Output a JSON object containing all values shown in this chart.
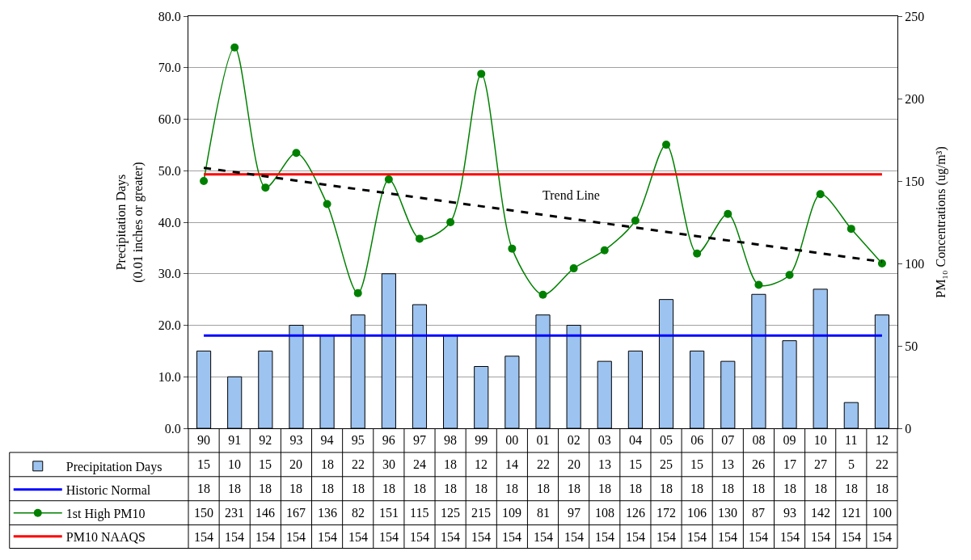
{
  "chart_data": {
    "type": "bar",
    "categories": [
      "90",
      "91",
      "92",
      "93",
      "94",
      "95",
      "96",
      "97",
      "98",
      "99",
      "00",
      "01",
      "02",
      "03",
      "04",
      "05",
      "06",
      "07",
      "08",
      "09",
      "10",
      "11",
      "12"
    ],
    "series": [
      {
        "name": "Precipitation Days",
        "color": "#9dc3f0",
        "values": [
          15,
          10,
          15,
          20,
          18,
          22,
          30,
          24,
          18,
          12,
          14,
          22,
          20,
          13,
          15,
          25,
          15,
          13,
          26,
          17,
          27,
          5,
          22
        ],
        "value_labels": [
          "15",
          "10",
          "15",
          "20",
          "18",
          "22",
          "30",
          "24",
          "18",
          "12",
          "14",
          "22",
          "20",
          "13",
          "15",
          "25",
          "15",
          "13",
          "26",
          "17",
          "27",
          "5",
          "22"
        ]
      },
      {
        "name": "Historic Normal",
        "type": "line",
        "color": "#0000ff",
        "marker": "none",
        "values": [
          18,
          18,
          18,
          18,
          18,
          18,
          18,
          18,
          18,
          18,
          18,
          18,
          18,
          18,
          18,
          18,
          18,
          18,
          18,
          18,
          18,
          18,
          18
        ],
        "value_labels": [
          "18",
          "18",
          "18",
          "18",
          "18",
          "18",
          "18",
          "18",
          "18",
          "18",
          "18",
          "18",
          "18",
          "18",
          "18",
          "18",
          "18",
          "18",
          "18",
          "18",
          "18",
          "18",
          "18"
        ]
      },
      {
        "name": "1st High PM10",
        "type": "line",
        "color": "#008000",
        "marker": "circle",
        "axis": "y2",
        "values": [
          150,
          231,
          146,
          167,
          136,
          82,
          151,
          115,
          125,
          215,
          109,
          81,
          97,
          108,
          126,
          172,
          106,
          130,
          87,
          93,
          142,
          121,
          100
        ],
        "value_labels": [
          "150",
          "231",
          "146",
          "167",
          "136",
          "82",
          "151",
          "115",
          "125",
          "215",
          "109",
          "81",
          "97",
          "108",
          "126",
          "172",
          "106",
          "130",
          "87",
          "93",
          "142",
          "121",
          "100"
        ]
      },
      {
        "name": "PM10 NAAQS",
        "type": "line",
        "color": "#ff0000",
        "marker": "none",
        "axis": "y2",
        "values": [
          154,
          154,
          154,
          154,
          154,
          154,
          154,
          154,
          154,
          154,
          154,
          154,
          154,
          154,
          154,
          154,
          154,
          154,
          154,
          154,
          154,
          154,
          154
        ],
        "value_labels": [
          "154",
          "154",
          "154",
          "154",
          "154",
          "154",
          "154",
          "154",
          "154",
          "154",
          "154",
          "154",
          "154",
          "154",
          "154",
          "154",
          "154",
          "154",
          "154",
          "154",
          "154",
          "154",
          "154"
        ]
      },
      {
        "type": "line",
        "color": "#000000",
        "marker": "none",
        "line_style": "dashed",
        "axis": "y2",
        "x": [
          "90",
          "12"
        ],
        "values": [
          158,
          101
        ]
      }
    ],
    "ylabel": "Precipitation Days\n(0.01 inches or greater)",
    "y2label": "PM₁₀ Concentrations (ug/m³)",
    "ylim": [
      0,
      80
    ],
    "yticks": [
      {
        "value": 0,
        "label": "0.0"
      },
      {
        "value": 10,
        "label": "10.0"
      },
      {
        "value": 20,
        "label": "20.0"
      },
      {
        "value": 30,
        "label": "30.0"
      },
      {
        "value": 40,
        "label": "40.0"
      },
      {
        "value": 50,
        "label": "50.0"
      },
      {
        "value": 60,
        "label": "60.0"
      },
      {
        "value": 70,
        "label": "70.0"
      },
      {
        "value": 80,
        "label": "80.0"
      }
    ],
    "y2lim": [
      0,
      250
    ],
    "y2ticks": [
      0,
      50,
      100,
      150,
      200,
      250
    ],
    "annotations": [
      "Trend Line"
    ],
    "grid": "y",
    "legend": "bottom"
  }
}
